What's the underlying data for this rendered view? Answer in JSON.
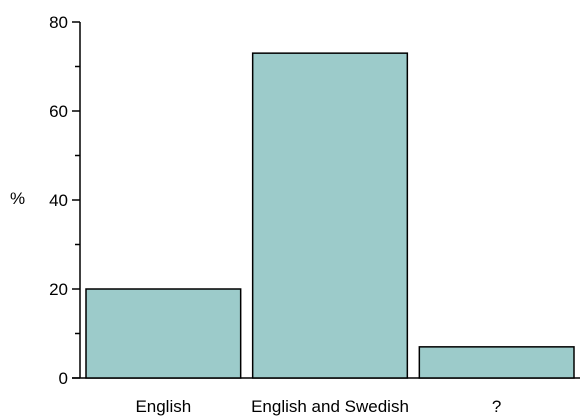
{
  "chart_data": {
    "type": "bar",
    "categories": [
      "English",
      "English and Swedish",
      "?"
    ],
    "values": [
      20,
      73,
      7
    ],
    "title": "",
    "xlabel": "",
    "ylabel": "%",
    "ylim": [
      0,
      80
    ],
    "yticks": [
      0,
      20,
      40,
      60,
      80
    ],
    "grid": false,
    "bar_color": "#9ccbca"
  }
}
